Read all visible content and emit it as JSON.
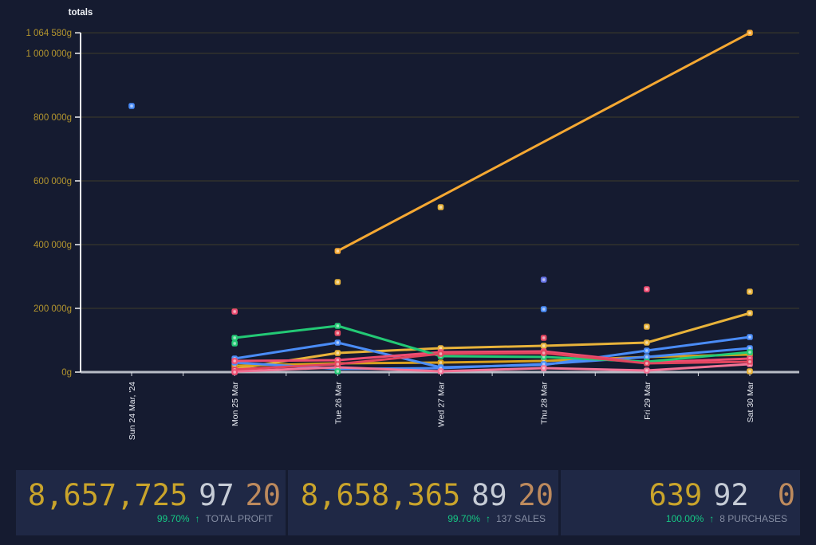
{
  "chart_data": {
    "type": "line",
    "title": "totals",
    "unit": "g",
    "grid": true,
    "legend": "none",
    "ylim": [
      0,
      1064580
    ],
    "categories": [
      "Sun 24 Mar, '24",
      "Mon 25 Mar",
      "Tue 26 Mar",
      "Wed 27 Mar",
      "Thu 28 Mar",
      "Fri 29 Mar",
      "Sat 30 Mar"
    ],
    "y_axis": {
      "ticks": [
        {
          "label": "0g",
          "value": 0
        },
        {
          "label": "200 000g",
          "value": 200000
        },
        {
          "label": "400 000g",
          "value": 400000
        },
        {
          "label": "600 000g",
          "value": 600000
        },
        {
          "label": "800 000g",
          "value": 800000
        },
        {
          "label": "1 000 000g",
          "value": 1000000
        },
        {
          "label": "1 064 580g",
          "value": 1064580
        }
      ]
    },
    "series": [
      {
        "name": "series-amber-main",
        "color": "#f5a832",
        "values": [
          null,
          null,
          380000,
          null,
          null,
          null,
          1064580
        ]
      },
      {
        "name": "series-gold",
        "color": "#e8b33a",
        "values": [
          null,
          10000,
          60000,
          75000,
          82500,
          92500,
          185000
        ]
      },
      {
        "name": "series-yellow-low",
        "color": "#d9a01e",
        "values": [
          null,
          20000,
          27500,
          30000,
          35000,
          47500,
          55000
        ]
      },
      {
        "name": "series-blue",
        "color": "#4a8cf7",
        "values": [
          null,
          42500,
          92500,
          15000,
          22500,
          67500,
          110000
        ]
      },
      {
        "name": "series-blue-low",
        "color": "#4a8cf7",
        "values": [
          null,
          30000,
          10000,
          12500,
          25000,
          47500,
          75000
        ]
      },
      {
        "name": "series-pink",
        "color": "#ee4d72",
        "values": [
          null,
          35000,
          37500,
          62500,
          65000,
          30000,
          42500
        ]
      },
      {
        "name": "series-pink-low",
        "color": "#f27396",
        "values": [
          null,
          2000,
          15000,
          2500,
          12500,
          5000,
          25000
        ]
      },
      {
        "name": "series-green",
        "color": "#23c975",
        "values": [
          null,
          107500,
          145000,
          50000,
          47500,
          32500,
          62500
        ]
      },
      {
        "name": "series-red",
        "color": "#e2455e",
        "values": [
          null,
          8000,
          25000,
          57500,
          60000,
          27500,
          32500
        ]
      }
    ],
    "points": [
      {
        "ci": 0,
        "value": 835000,
        "color": "#4a8cf7"
      },
      {
        "ci": 1,
        "value": 190000,
        "color": "#ee4d72"
      },
      {
        "ci": 1,
        "value": 90000,
        "color": "#23c975"
      },
      {
        "ci": 1,
        "value": 0,
        "color": "#ee4d72"
      },
      {
        "ci": 2,
        "value": 282500,
        "color": "#e8b33a"
      },
      {
        "ci": 2,
        "value": 122500,
        "color": "#e2455e"
      },
      {
        "ci": 2,
        "value": 2500,
        "color": "#23c975"
      },
      {
        "ci": 3,
        "value": 517500,
        "color": "#e8b33a"
      },
      {
        "ci": 4,
        "value": 290000,
        "color": "#6673e5"
      },
      {
        "ci": 4,
        "value": 197500,
        "color": "#4a8cf7"
      },
      {
        "ci": 4,
        "value": 107500,
        "color": "#e2455e"
      },
      {
        "ci": 5,
        "value": 260000,
        "color": "#ee4d72"
      },
      {
        "ci": 5,
        "value": 142500,
        "color": "#e8b33a"
      },
      {
        "ci": 6,
        "value": 252500,
        "color": "#e8b33a"
      },
      {
        "ci": 6,
        "value": 2500,
        "color": "#e8b33a"
      }
    ]
  },
  "colors": {
    "page_bg": "#151b30",
    "panel_bg": "#1f2845",
    "axis_line": "#b8bcc6",
    "y_axis_line": "#f2f3f5",
    "grid_line": "#45412a",
    "y_label": "#b3952e",
    "x_label": "#e6e9f0",
    "gold_text": "#c9a42b",
    "silver_text": "#c6ccd6",
    "copper_text": "#bd8a5d",
    "positive_green": "#16c784",
    "muted_label": "#848ca2"
  },
  "footer": {
    "stats": [
      {
        "gold": "8,657,725",
        "silver": "97",
        "copper": "20",
        "percent": "99.70%",
        "arrow": "↑",
        "label": "TOTAL PROFIT"
      },
      {
        "gold": "8,658,365",
        "silver": "89",
        "copper": "20",
        "percent": "99.70%",
        "arrow": "↑",
        "label": "137 SALES"
      },
      {
        "gold": "639",
        "silver": "92",
        "copper": "0",
        "percent": "100.00%",
        "arrow": "↑",
        "label": "8 PURCHASES"
      }
    ]
  }
}
